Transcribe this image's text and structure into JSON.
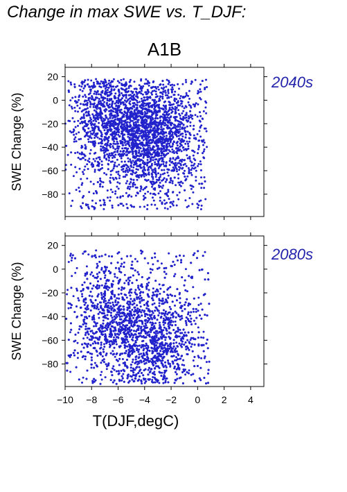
{
  "page_title": "Change in max SWE vs. T_DJF:",
  "scenario_label": "A1B",
  "chart_data": [
    {
      "type": "scatter",
      "panel_label": "2040s",
      "ylabel": "SWE Change (%)",
      "xlabel": "",
      "xlim": [
        -10,
        5
      ],
      "ylim": [
        -99,
        28
      ],
      "xticks": [
        -10,
        -8,
        -6,
        -4,
        -2,
        0,
        2,
        4
      ],
      "yticks": [
        -80,
        -60,
        -40,
        -20,
        0,
        20
      ],
      "show_xtick_labels": false,
      "point_color": "#2222cc",
      "grid": false,
      "point_cloud": {
        "approx_points": 3000,
        "x_range": [
          -10,
          0.7
        ],
        "y_range": [
          -93,
          18
        ],
        "dense_core": {
          "x": -3.5,
          "y": -30
        },
        "secondary_core": {
          "x": -6.5,
          "y": -12
        }
      }
    },
    {
      "type": "scatter",
      "panel_label": "2080s",
      "ylabel": "SWE Change (%)",
      "xlabel": "T(DJF,degC)",
      "xlim": [
        -10,
        5
      ],
      "ylim": [
        -99,
        28
      ],
      "xticks": [
        -10,
        -8,
        -6,
        -4,
        -2,
        0,
        2,
        4
      ],
      "xtick_labels": [
        "−10",
        "−8",
        "−6",
        "−4",
        "−2",
        "0",
        "2",
        "4"
      ],
      "yticks": [
        -80,
        -60,
        -40,
        -20,
        0,
        20
      ],
      "show_xtick_labels": true,
      "point_color": "#2222cc",
      "grid": false,
      "point_cloud": {
        "approx_points": 3000,
        "x_range": [
          -10,
          0.9
        ],
        "y_range": [
          -97,
          16
        ],
        "dense_core": {
          "x": -3.5,
          "y": -60
        },
        "secondary_core": {
          "x": -7,
          "y": -40
        }
      }
    }
  ]
}
